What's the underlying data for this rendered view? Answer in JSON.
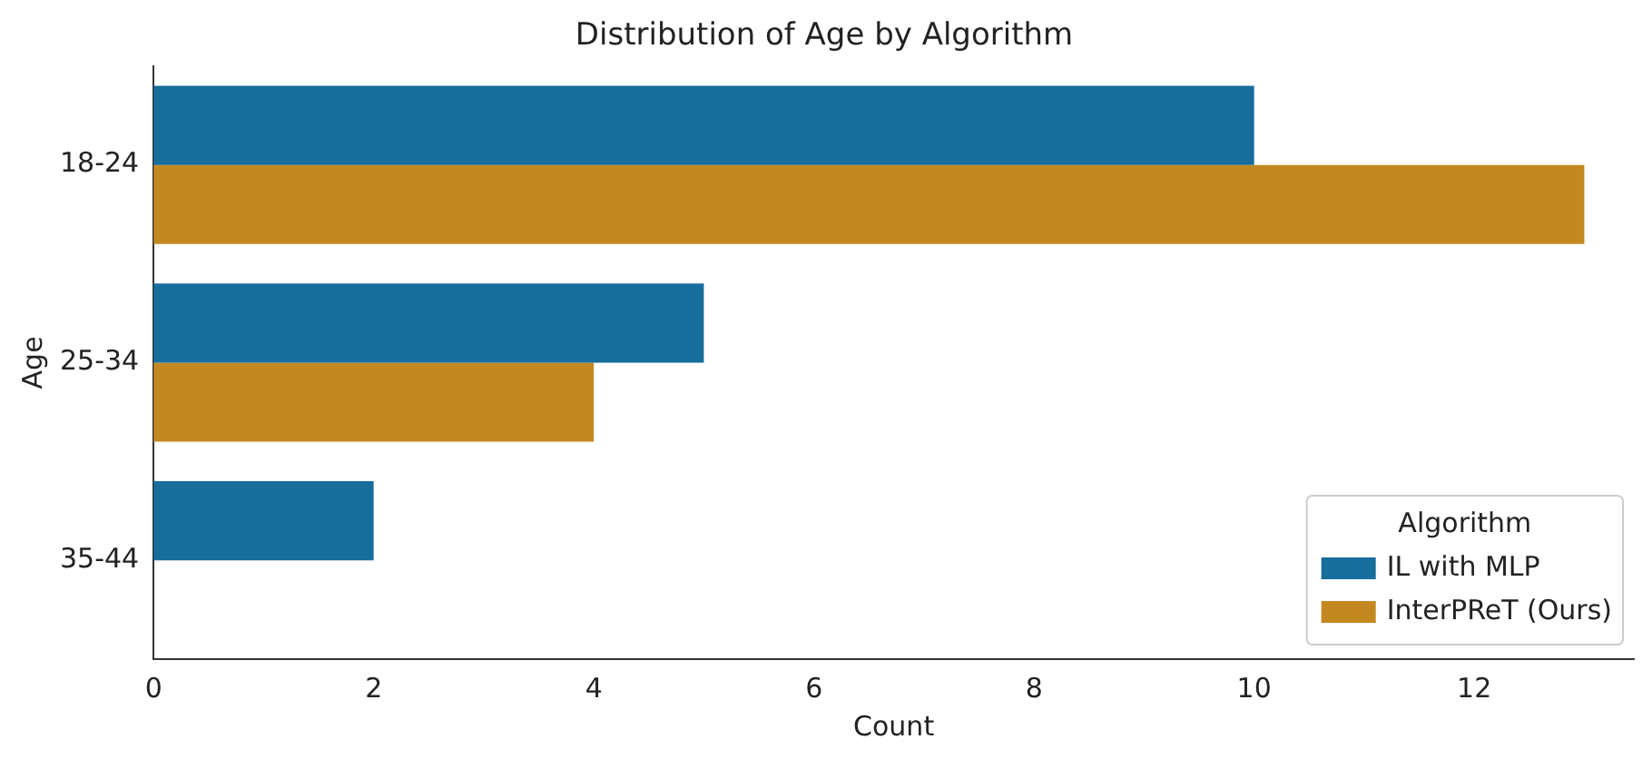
{
  "chart_data": {
    "type": "bar",
    "orientation": "horizontal",
    "title": "Distribution of Age by Algorithm",
    "xlabel": "Count",
    "ylabel": "Age",
    "legend_title": "Algorithm",
    "categories": [
      "18-24",
      "25-34",
      "35-44"
    ],
    "series": [
      {
        "name": "IL with MLP",
        "color": "#176d9c",
        "values": [
          10,
          5,
          2
        ]
      },
      {
        "name": "InterPReT (Ours)",
        "color": "#c38820",
        "values": [
          13,
          4,
          0
        ]
      }
    ],
    "xlim": [
      0,
      13.45
    ],
    "xticks": [
      0,
      2,
      4,
      6,
      8,
      10,
      12
    ],
    "grid": false,
    "legend": "bottom right"
  }
}
